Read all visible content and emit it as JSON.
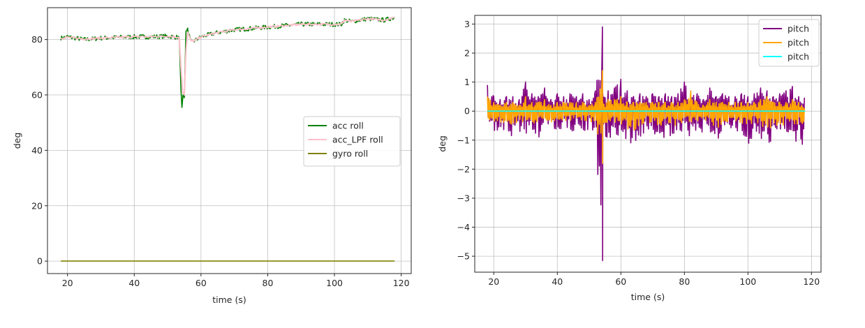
{
  "chart_data": [
    {
      "type": "line",
      "title": "",
      "xlabel": "time (s)",
      "ylabel": "deg",
      "xlim": [
        14,
        123
      ],
      "ylim": [
        -4.5,
        91.5
      ],
      "xticks": [
        20,
        40,
        60,
        80,
        100,
        120
      ],
      "yticks": [
        0,
        20,
        40,
        60,
        80
      ],
      "grid": true,
      "legend_position": "center right",
      "series": [
        {
          "name": "acc roll",
          "color": "#008000",
          "x": [
            18,
            20,
            25,
            30,
            35,
            40,
            45,
            50,
            53.5,
            54,
            54.3,
            54.6,
            55,
            55.5,
            56,
            57,
            58,
            60,
            65,
            70,
            75,
            80,
            85,
            90,
            95,
            100,
            102,
            103,
            105,
            110,
            115,
            118
          ],
          "y": [
            80.5,
            81,
            80,
            80.5,
            80.8,
            81,
            81,
            81.2,
            80.8,
            62,
            55.5,
            60,
            59,
            83,
            83.5,
            79,
            79.5,
            81,
            82.5,
            83.5,
            84,
            84.5,
            85,
            85.5,
            85.5,
            85.5,
            85.5,
            87,
            86.5,
            87.5,
            87,
            88
          ]
        },
        {
          "name": "acc_LPF roll",
          "color": "#ffc0cb",
          "x": [
            18,
            20,
            25,
            30,
            35,
            40,
            45,
            50,
            53.5,
            54,
            54.5,
            55,
            55.5,
            56,
            57,
            58,
            60,
            65,
            70,
            75,
            80,
            85,
            90,
            95,
            100,
            102,
            103,
            105,
            110,
            115,
            118
          ],
          "y": [
            80.5,
            80.8,
            80.2,
            80.5,
            80.8,
            81,
            81,
            81.2,
            80.8,
            70,
            61,
            60,
            76,
            82.5,
            79.5,
            79.5,
            81,
            82.5,
            83.5,
            84,
            84.5,
            85,
            85.5,
            85.5,
            85.5,
            85.5,
            87,
            86.5,
            87.5,
            87,
            88
          ]
        },
        {
          "name": "gyro roll",
          "color": "#808000",
          "x": [
            18,
            118
          ],
          "y": [
            0,
            0
          ]
        }
      ]
    },
    {
      "type": "line",
      "title": "",
      "xlabel": "time (s)",
      "ylabel": "deg",
      "xlim": [
        14,
        123
      ],
      "ylim": [
        -5.55,
        3.3
      ],
      "xticks": [
        20,
        40,
        60,
        80,
        100,
        120
      ],
      "yticks": [
        3,
        2,
        1,
        0,
        -1,
        -2,
        -3,
        -4,
        -5
      ],
      "grid": true,
      "legend_position": "upper right",
      "series": [
        {
          "name": "pitch",
          "color": "#800080",
          "x": [
            18,
            20,
            22,
            24,
            26,
            28,
            30,
            32,
            34,
            36,
            38,
            40,
            42,
            44,
            46,
            48,
            50,
            52,
            54.2,
            54.3,
            56,
            58,
            60,
            62,
            64,
            66,
            68,
            70,
            72,
            74,
            76,
            78,
            80,
            82,
            84,
            86,
            88,
            90,
            92,
            94,
            96,
            98,
            100,
            102,
            104,
            106,
            108,
            110,
            112,
            114,
            116,
            118
          ],
          "y_max": [
            0.9,
            0.5,
            0.4,
            0.5,
            0.5,
            0.4,
            1.0,
            0.6,
            0.5,
            0.8,
            0.4,
            0.6,
            0.5,
            0.6,
            0.5,
            0.6,
            0.4,
            0.7,
            2.9,
            0.6,
            0.7,
            0.8,
            1.1,
            0.7,
            0.5,
            0.6,
            0.5,
            0.6,
            0.5,
            0.6,
            0.5,
            0.6,
            1.0,
            0.5,
            0.6,
            0.4,
            0.8,
            0.5,
            0.6,
            0.5,
            0.5,
            0.6,
            0.5,
            0.6,
            0.8,
            0.7,
            0.5,
            0.6,
            0.7,
            0.85,
            0.5,
            0.5
          ],
          "y_min": [
            -0.5,
            -0.7,
            -0.9,
            -0.8,
            -0.9,
            -0.7,
            -0.8,
            -0.7,
            -0.95,
            -0.6,
            -0.7,
            -0.7,
            -0.6,
            -0.8,
            -0.6,
            -0.8,
            -0.6,
            -1.0,
            -5.15,
            -0.8,
            -1.0,
            -0.9,
            -0.9,
            -1.1,
            -1.2,
            -0.9,
            -0.8,
            -0.8,
            -0.9,
            -1.0,
            -0.9,
            -1.1,
            -0.8,
            -0.9,
            -0.7,
            -0.8,
            -0.7,
            -1.05,
            -0.8,
            -0.7,
            -0.8,
            -0.7,
            -1.15,
            -0.8,
            -0.9,
            -1.4,
            -0.9,
            -0.9,
            -1.0,
            -1.0,
            -1.1,
            -1.2
          ]
        },
        {
          "name": "pitch",
          "color": "#ffa500",
          "x": [
            18,
            20,
            22,
            24,
            26,
            28,
            30,
            32,
            34,
            36,
            38,
            40,
            42,
            44,
            46,
            48,
            50,
            52,
            54.2,
            54.3,
            56,
            58,
            60,
            62,
            64,
            66,
            68,
            70,
            72,
            74,
            76,
            78,
            80,
            82,
            84,
            86,
            88,
            90,
            92,
            94,
            96,
            98,
            100,
            102,
            104,
            106,
            108,
            110,
            112,
            114,
            116,
            118
          ],
          "y_max": [
            0.5,
            0.3,
            0.2,
            0.3,
            0.3,
            0.2,
            0.5,
            0.3,
            0.3,
            0.4,
            0.2,
            0.3,
            0.3,
            0.3,
            0.3,
            0.3,
            0.2,
            0.3,
            1.4,
            0.3,
            0.4,
            0.4,
            0.5,
            0.3,
            0.3,
            0.3,
            0.3,
            0.3,
            0.3,
            0.3,
            0.3,
            0.3,
            0.4,
            0.7,
            0.3,
            0.2,
            0.4,
            0.3,
            0.3,
            0.3,
            0.3,
            0.3,
            0.3,
            0.3,
            0.4,
            0.5,
            0.3,
            0.3,
            0.3,
            0.4,
            0.3,
            0.2
          ],
          "y_min": [
            -0.3,
            -0.4,
            -0.5,
            -0.4,
            -0.5,
            -0.4,
            -0.4,
            -0.4,
            -0.5,
            -0.3,
            -0.4,
            -0.4,
            -0.3,
            -0.4,
            -0.3,
            -0.4,
            -0.3,
            -0.5,
            -1.8,
            -0.4,
            -0.5,
            -0.5,
            -0.5,
            -0.6,
            -0.8,
            -0.5,
            -0.4,
            -0.4,
            -0.5,
            -0.5,
            -0.5,
            -0.6,
            -0.4,
            -0.5,
            -0.4,
            -0.4,
            -0.4,
            -0.7,
            -0.4,
            -0.4,
            -0.4,
            -0.4,
            -0.6,
            -0.4,
            -0.5,
            -0.7,
            -0.5,
            -0.5,
            -0.5,
            -0.5,
            -0.5,
            -0.5
          ]
        },
        {
          "name": "pitch",
          "color": "#00ffff",
          "x": [
            18,
            118
          ],
          "y": [
            0,
            0
          ]
        }
      ]
    }
  ]
}
